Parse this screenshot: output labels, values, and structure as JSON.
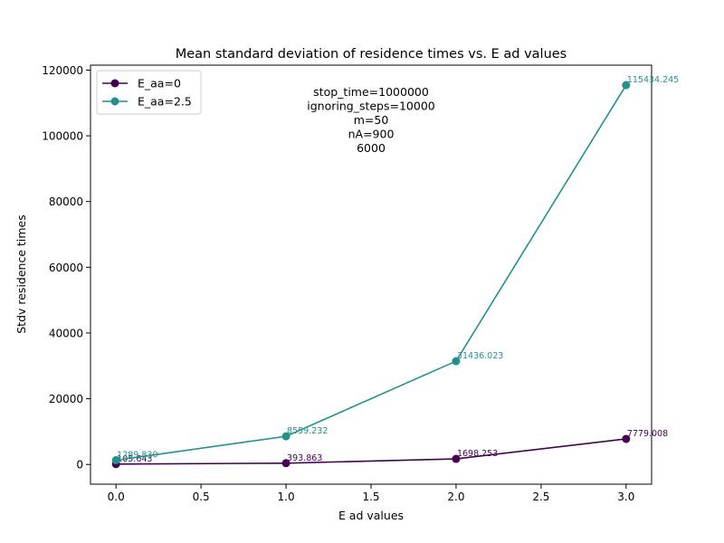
{
  "chart_data": {
    "type": "line",
    "title": "Mean standard deviation of residence times vs. E ad values",
    "xlabel": "E ad values",
    "ylabel": "Stdv residence times",
    "xlim": [
      -0.15,
      3.15
    ],
    "ylim": [
      -6000,
      121500
    ],
    "x_ticks": [
      0.0,
      0.5,
      1.0,
      1.5,
      2.0,
      2.5,
      3.0
    ],
    "x_tick_labels": [
      "0.0",
      "0.5",
      "1.0",
      "1.5",
      "2.0",
      "2.5",
      "3.0"
    ],
    "y_ticks": [
      0,
      20000,
      40000,
      60000,
      80000,
      100000,
      120000
    ],
    "y_tick_labels": [
      "0",
      "20000",
      "40000",
      "60000",
      "80000",
      "100000",
      "120000"
    ],
    "grid": false,
    "legend_position": "top-left",
    "x": [
      0,
      1,
      2,
      3
    ],
    "series": [
      {
        "name": "E_aa=0",
        "color": "#440154",
        "values": [
          105.643,
          393.863,
          1698.253,
          7779.008
        ],
        "labels": [
          "105.643",
          "393.863",
          "1698.253",
          "7779.008"
        ]
      },
      {
        "name": "E_aa=2.5",
        "color": "#21918c",
        "values": [
          1289.83,
          8559.232,
          31436.023,
          115434.245
        ],
        "labels": [
          "1289.830",
          "8559.232",
          "31436.023",
          "115434.245"
        ]
      }
    ],
    "annotation_lines": [
      "stop_time=1000000",
      "ignoring_steps=10000",
      "m=50",
      "nA=900",
      "6000"
    ]
  }
}
